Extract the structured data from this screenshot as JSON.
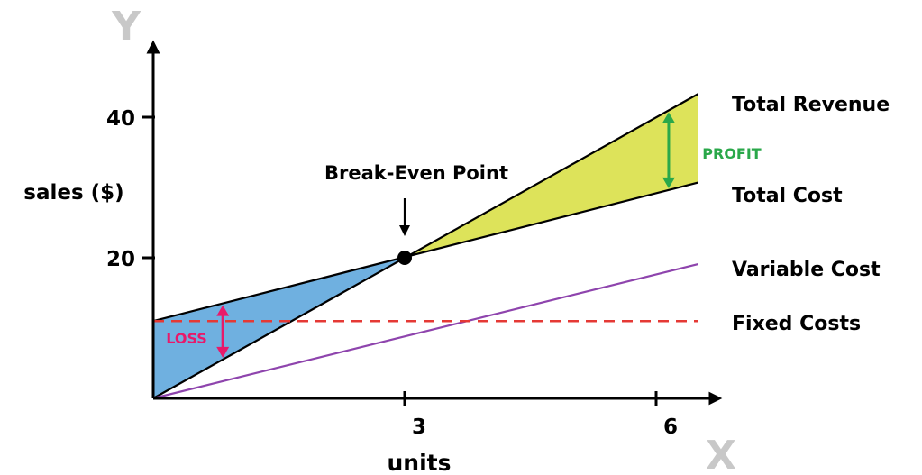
{
  "chart_data": {
    "type": "line",
    "title": "",
    "xlabel": "units",
    "ylabel": "sales ($)",
    "x_axis_letter": "X",
    "y_axis_letter": "Y",
    "xlim": [
      0,
      6.6
    ],
    "ylim": [
      0,
      40
    ],
    "x_ticks": [
      {
        "value": 3,
        "label": "3"
      },
      {
        "value": 6,
        "label": "6"
      }
    ],
    "y_ticks": [
      {
        "value": 20,
        "label": "20"
      },
      {
        "value": 40,
        "label": "40"
      }
    ],
    "series": [
      {
        "name": "Total Revenue",
        "x": [
          0,
          6.5
        ],
        "y": [
          0,
          43.3
        ],
        "color": "#000000",
        "style": "solid"
      },
      {
        "name": "Total Cost",
        "x": [
          0,
          6.5
        ],
        "y": [
          11,
          30.7
        ],
        "color": "#000000",
        "style": "solid"
      },
      {
        "name": "Variable Cost",
        "x": [
          0,
          6.5
        ],
        "y": [
          0,
          19.1
        ],
        "color": "#8e44ad",
        "style": "solid"
      },
      {
        "name": "Fixed Costs",
        "x": [
          0,
          6.5
        ],
        "y": [
          11,
          11
        ],
        "color": "#e53935",
        "style": "dashed"
      }
    ],
    "break_even": {
      "label": "Break-Even Point",
      "x": 3,
      "y": 20
    },
    "regions": {
      "loss": {
        "label": "LOSS",
        "fill": "#6fb0e0",
        "label_color": "#e8196a",
        "arrow_x": 1.6
      },
      "profit": {
        "label": "PROFIT",
        "fill": "#dde35a",
        "label_color": "#2aa84a",
        "arrow_x": 6.15
      }
    },
    "grid": false,
    "legend": "none"
  }
}
